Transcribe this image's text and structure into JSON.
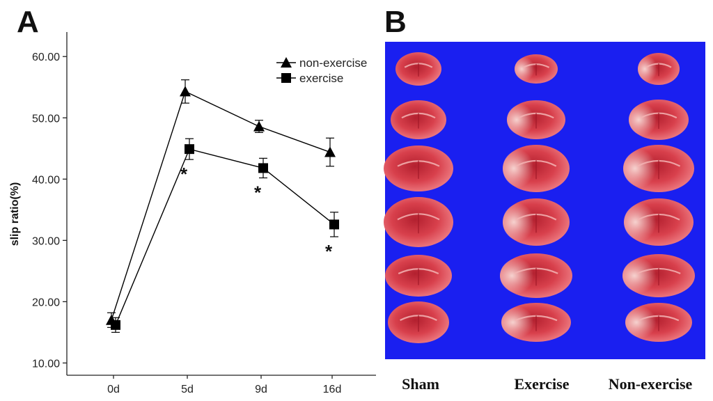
{
  "panel_a_label": "A",
  "panel_b_label": "B",
  "chart_data": {
    "type": "line",
    "title": "",
    "xlabel": "",
    "ylabel": "slip ratio(%)",
    "categories": [
      "0d",
      "5d",
      "9d",
      "16d"
    ],
    "ylim": [
      8,
      64
    ],
    "yticks": [
      10,
      20,
      30,
      40,
      50,
      60
    ],
    "ytick_labels": [
      "10.00",
      "20.00",
      "30.00",
      "40.00",
      "50.00",
      "60.00"
    ],
    "legend_position": "top-right",
    "series": [
      {
        "name": "non-exercise",
        "marker": "triangle",
        "values": [
          17.0,
          54.3,
          48.6,
          44.4
        ],
        "error": [
          1.2,
          1.9,
          1.0,
          2.3
        ]
      },
      {
        "name": "exercise",
        "marker": "square",
        "values": [
          16.2,
          44.9,
          41.8,
          32.6
        ],
        "error": [
          1.2,
          1.7,
          1.6,
          2.0
        ]
      }
    ],
    "significance_marker": "*",
    "significance_categories": [
      "5d",
      "9d",
      "16d"
    ]
  },
  "photo": {
    "background_color": "#1a1ff0",
    "tissue_color": "#d63c48",
    "column_labels": [
      "Sham",
      "Exercise",
      "Non-exercise"
    ],
    "rows": 6
  }
}
